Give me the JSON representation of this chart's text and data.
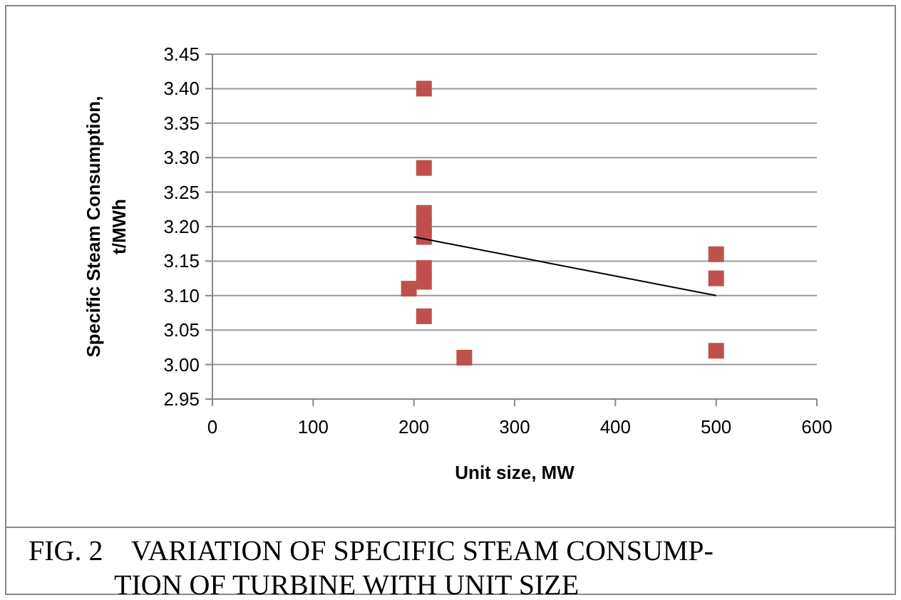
{
  "chart_data": {
    "type": "scatter",
    "xlabel": "Unit size, MW",
    "ylabel": "Specific Steam Consumption, t/MWh",
    "annotations": [
      "FIG. 2    VARIATION OF SPECIFIC STEAM CONSUMP-TION OF TURBINE WITH UNIT SIZE"
    ],
    "xlim": [
      0,
      600
    ],
    "xticks": [
      0,
      100,
      200,
      300,
      400,
      500,
      600
    ],
    "ylim": [
      2.95,
      3.45
    ],
    "yticks": [
      {
        "value": 2.95,
        "label": "2.95"
      },
      {
        "value": 3.0,
        "label": "3.00"
      },
      {
        "value": 3.05,
        "label": "3.05"
      },
      {
        "value": 3.1,
        "label": "3.10"
      },
      {
        "value": 3.15,
        "label": "3.15"
      },
      {
        "value": 3.2,
        "label": "3.20"
      },
      {
        "value": 3.25,
        "label": "3.25"
      },
      {
        "value": 3.3,
        "label": "3.30"
      },
      {
        "value": 3.35,
        "label": "3.35"
      },
      {
        "value": 3.4,
        "label": "3.40"
      },
      {
        "value": 3.45,
        "label": "3.45"
      }
    ],
    "grid": "y",
    "marker": "square",
    "series": [
      {
        "color": "#c0504d",
        "x": [
          210,
          210,
          210,
          210,
          210,
          210,
          210,
          195,
          210,
          250,
          500,
          500,
          500
        ],
        "values": [
          3.4,
          3.285,
          3.22,
          3.2,
          3.185,
          3.14,
          3.12,
          3.11,
          3.07,
          3.01,
          3.16,
          3.125,
          3.02
        ]
      },
      {
        "type": "line",
        "color": "#000000",
        "marker": "none",
        "x": [
          200,
          500
        ],
        "values": [
          3.185,
          3.1
        ]
      }
    ]
  }
}
